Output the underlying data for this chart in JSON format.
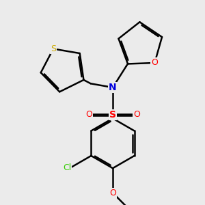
{
  "bg_color": "#ebebeb",
  "bond_color": "#000000",
  "bond_width": 1.8,
  "dbo": 0.012,
  "fig_width": 3.0,
  "fig_height": 3.0,
  "dpi": 100,
  "atom_colors": {
    "S_sulfone": "#ff0000",
    "S_thio": "#ccaa00",
    "N": "#0000dd",
    "O": "#ff0000",
    "Cl": "#33cc00"
  }
}
